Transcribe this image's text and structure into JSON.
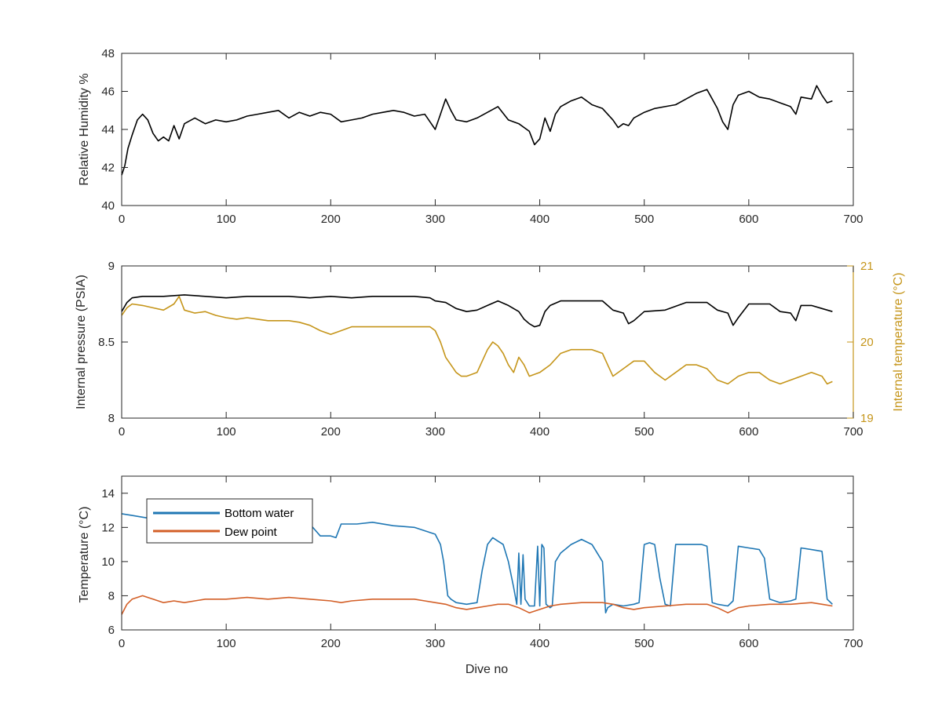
{
  "colors": {
    "humidity": "#000000",
    "pressure": "#000000",
    "internal_temperature": "#C5951A",
    "bottom_water": "#1F77B4",
    "dew_point": "#D35F27",
    "axis": "#262626"
  },
  "chart_data": [
    {
      "type": "line",
      "xlabel": "",
      "ylabel": "Relative Humidity %",
      "xlim": [
        0,
        700
      ],
      "ylim": [
        40,
        48
      ],
      "x_ticks": [
        "0",
        "100",
        "200",
        "300",
        "400",
        "500",
        "600",
        "700"
      ],
      "y_ticks": [
        "40",
        "42",
        "44",
        "46",
        "48"
      ],
      "series": [
        {
          "color": "#000000",
          "x": [
            0,
            3,
            6,
            10,
            15,
            20,
            25,
            30,
            35,
            40,
            45,
            50,
            55,
            60,
            70,
            80,
            90,
            100,
            110,
            120,
            130,
            140,
            150,
            160,
            170,
            180,
            190,
            200,
            210,
            220,
            230,
            240,
            250,
            260,
            270,
            280,
            290,
            295,
            300,
            305,
            310,
            315,
            320,
            330,
            340,
            350,
            360,
            370,
            380,
            390,
            395,
            400,
            405,
            410,
            415,
            420,
            430,
            440,
            450,
            460,
            470,
            475,
            480,
            485,
            490,
            500,
            510,
            520,
            530,
            540,
            550,
            560,
            565,
            570,
            575,
            580,
            585,
            590,
            600,
            610,
            620,
            630,
            640,
            645,
            650,
            660,
            665,
            670,
            675,
            680
          ],
          "values": [
            41.6,
            42.1,
            43.0,
            43.7,
            44.5,
            44.8,
            44.5,
            43.8,
            43.4,
            43.6,
            43.4,
            44.2,
            43.5,
            44.3,
            44.6,
            44.3,
            44.5,
            44.4,
            44.5,
            44.7,
            44.8,
            44.9,
            45.0,
            44.6,
            44.9,
            44.7,
            44.9,
            44.8,
            44.4,
            44.5,
            44.6,
            44.8,
            44.9,
            45.0,
            44.9,
            44.7,
            44.8,
            44.4,
            44.0,
            44.8,
            45.6,
            45.0,
            44.5,
            44.4,
            44.6,
            44.9,
            45.2,
            44.5,
            44.3,
            43.9,
            43.2,
            43.5,
            44.6,
            43.9,
            44.8,
            45.2,
            45.5,
            45.7,
            45.3,
            45.1,
            44.5,
            44.1,
            44.3,
            44.2,
            44.6,
            44.9,
            45.1,
            45.2,
            45.3,
            45.6,
            45.9,
            46.1,
            45.6,
            45.1,
            44.4,
            44.0,
            45.3,
            45.8,
            46.0,
            45.7,
            45.6,
            45.4,
            45.2,
            44.8,
            45.7,
            45.6,
            46.3,
            45.8,
            45.4,
            45.5
          ]
        }
      ]
    },
    {
      "type": "line",
      "xlabel": "",
      "ylabel": "Internal pressure (PSIA)",
      "y2label": "Internal temperature (°C)",
      "xlim": [
        0,
        700
      ],
      "ylim": [
        8,
        9
      ],
      "y2lim": [
        19,
        21
      ],
      "x_ticks": [
        "0",
        "100",
        "200",
        "300",
        "400",
        "500",
        "600",
        "700"
      ],
      "y_ticks": [
        "8",
        "8.5",
        "9"
      ],
      "y2_ticks": [
        "19",
        "20",
        "21"
      ],
      "series": [
        {
          "axis": "left",
          "color": "#000000",
          "x": [
            0,
            5,
            10,
            20,
            40,
            60,
            80,
            100,
            120,
            140,
            160,
            180,
            200,
            220,
            240,
            260,
            280,
            295,
            300,
            310,
            320,
            330,
            340,
            350,
            360,
            370,
            380,
            385,
            390,
            395,
            400,
            405,
            410,
            420,
            440,
            460,
            465,
            470,
            480,
            485,
            490,
            500,
            520,
            540,
            560,
            570,
            580,
            585,
            590,
            600,
            620,
            630,
            640,
            645,
            650,
            660,
            670,
            680
          ],
          "values": [
            8.7,
            8.76,
            8.79,
            8.8,
            8.8,
            8.81,
            8.8,
            8.79,
            8.8,
            8.8,
            8.8,
            8.79,
            8.8,
            8.79,
            8.8,
            8.8,
            8.8,
            8.79,
            8.77,
            8.76,
            8.72,
            8.7,
            8.71,
            8.74,
            8.77,
            8.74,
            8.7,
            8.65,
            8.62,
            8.6,
            8.61,
            8.7,
            8.74,
            8.77,
            8.77,
            8.77,
            8.74,
            8.71,
            8.69,
            8.62,
            8.64,
            8.7,
            8.71,
            8.76,
            8.76,
            8.71,
            8.69,
            8.61,
            8.66,
            8.75,
            8.75,
            8.7,
            8.69,
            8.64,
            8.74,
            8.74,
            8.72,
            8.7
          ]
        },
        {
          "axis": "right",
          "color": "#C5951A",
          "x": [
            0,
            5,
            10,
            20,
            30,
            40,
            50,
            55,
            60,
            70,
            80,
            90,
            100,
            110,
            120,
            130,
            140,
            150,
            160,
            170,
            180,
            190,
            200,
            210,
            220,
            240,
            260,
            280,
            290,
            295,
            300,
            305,
            310,
            315,
            320,
            325,
            330,
            340,
            345,
            350,
            355,
            360,
            365,
            370,
            375,
            380,
            385,
            390,
            400,
            410,
            420,
            430,
            440,
            450,
            460,
            465,
            470,
            480,
            490,
            500,
            510,
            520,
            530,
            540,
            550,
            560,
            570,
            580,
            590,
            600,
            610,
            620,
            630,
            640,
            650,
            660,
            670,
            675,
            680
          ],
          "values": [
            20.35,
            20.45,
            20.5,
            20.48,
            20.45,
            20.42,
            20.5,
            20.6,
            20.42,
            20.38,
            20.4,
            20.35,
            20.32,
            20.3,
            20.32,
            20.3,
            20.28,
            20.28,
            20.28,
            20.26,
            20.22,
            20.15,
            20.1,
            20.15,
            20.2,
            20.2,
            20.2,
            20.2,
            20.2,
            20.2,
            20.15,
            20.0,
            19.8,
            19.7,
            19.6,
            19.55,
            19.55,
            19.6,
            19.75,
            19.9,
            20.0,
            19.95,
            19.85,
            19.7,
            19.6,
            19.8,
            19.7,
            19.55,
            19.6,
            19.7,
            19.85,
            19.9,
            19.9,
            19.9,
            19.85,
            19.7,
            19.55,
            19.65,
            19.75,
            19.75,
            19.6,
            19.5,
            19.6,
            19.7,
            19.7,
            19.65,
            19.5,
            19.45,
            19.55,
            19.6,
            19.6,
            19.5,
            19.45,
            19.5,
            19.55,
            19.6,
            19.55,
            19.45,
            19.48
          ]
        }
      ]
    },
    {
      "type": "line",
      "xlabel": "Dive no",
      "ylabel": "Temperature (°C)",
      "xlim": [
        0,
        700
      ],
      "ylim": [
        6,
        15
      ],
      "x_ticks": [
        "0",
        "100",
        "200",
        "300",
        "400",
        "500",
        "600",
        "700"
      ],
      "y_ticks": [
        "6",
        "8",
        "10",
        "12",
        "14"
      ],
      "legend": {
        "position": "top-left",
        "entries": [
          "Bottom water",
          "Dew point"
        ]
      },
      "series": [
        {
          "name": "Bottom water",
          "color": "#1F77B4",
          "x": [
            0,
            10,
            20,
            30,
            50,
            80,
            100,
            120,
            150,
            170,
            180,
            190,
            200,
            205,
            210,
            215,
            225,
            240,
            260,
            280,
            300,
            305,
            308,
            312,
            315,
            320,
            330,
            340,
            345,
            350,
            355,
            360,
            365,
            370,
            375,
            378,
            380,
            382,
            384,
            386,
            390,
            395,
            398,
            400,
            402,
            404,
            406,
            410,
            412,
            415,
            420,
            430,
            440,
            450,
            460,
            463,
            465,
            470,
            480,
            490,
            495,
            500,
            505,
            510,
            515,
            520,
            525,
            530,
            540,
            550,
            555,
            560,
            565,
            570,
            580,
            585,
            590,
            600,
            610,
            615,
            620,
            625,
            630,
            640,
            645,
            650,
            660,
            670,
            675,
            680
          ],
          "values": [
            12.8,
            12.7,
            12.6,
            12.5,
            12.4,
            12.3,
            12.5,
            12.6,
            12.6,
            12.5,
            12.2,
            11.5,
            11.5,
            11.4,
            12.2,
            12.2,
            12.2,
            12.3,
            12.1,
            12.0,
            11.6,
            11.0,
            10.0,
            8.0,
            7.8,
            7.6,
            7.5,
            7.6,
            9.5,
            11.0,
            11.4,
            11.2,
            11.0,
            10.0,
            8.5,
            7.5,
            10.5,
            7.5,
            10.4,
            7.8,
            7.4,
            7.4,
            10.9,
            7.4,
            11.0,
            10.8,
            7.5,
            7.3,
            7.4,
            10.0,
            10.5,
            11.0,
            11.3,
            11.0,
            10.0,
            7.0,
            7.3,
            7.5,
            7.4,
            7.5,
            7.6,
            11.0,
            11.1,
            11.0,
            9.0,
            7.5,
            7.4,
            11.0,
            11.0,
            11.0,
            11.0,
            10.9,
            7.6,
            7.5,
            7.4,
            7.7,
            10.9,
            10.8,
            10.7,
            10.2,
            7.8,
            7.7,
            7.6,
            7.7,
            7.8,
            10.8,
            10.7,
            10.6,
            7.8,
            7.5
          ]
        },
        {
          "name": "Dew point",
          "color": "#D35F27",
          "x": [
            0,
            5,
            10,
            20,
            30,
            40,
            50,
            60,
            80,
            100,
            120,
            140,
            160,
            180,
            200,
            210,
            220,
            240,
            260,
            280,
            290,
            300,
            310,
            320,
            330,
            340,
            350,
            360,
            370,
            380,
            390,
            400,
            410,
            420,
            440,
            460,
            470,
            480,
            490,
            500,
            520,
            540,
            560,
            570,
            580,
            590,
            600,
            620,
            640,
            660,
            670,
            680
          ],
          "values": [
            6.9,
            7.5,
            7.8,
            8.0,
            7.8,
            7.6,
            7.7,
            7.6,
            7.8,
            7.8,
            7.9,
            7.8,
            7.9,
            7.8,
            7.7,
            7.6,
            7.7,
            7.8,
            7.8,
            7.8,
            7.7,
            7.6,
            7.5,
            7.3,
            7.2,
            7.3,
            7.4,
            7.5,
            7.5,
            7.3,
            7.0,
            7.2,
            7.4,
            7.5,
            7.6,
            7.6,
            7.5,
            7.3,
            7.2,
            7.3,
            7.4,
            7.5,
            7.5,
            7.3,
            7.0,
            7.3,
            7.4,
            7.5,
            7.5,
            7.6,
            7.5,
            7.4
          ]
        }
      ]
    }
  ]
}
